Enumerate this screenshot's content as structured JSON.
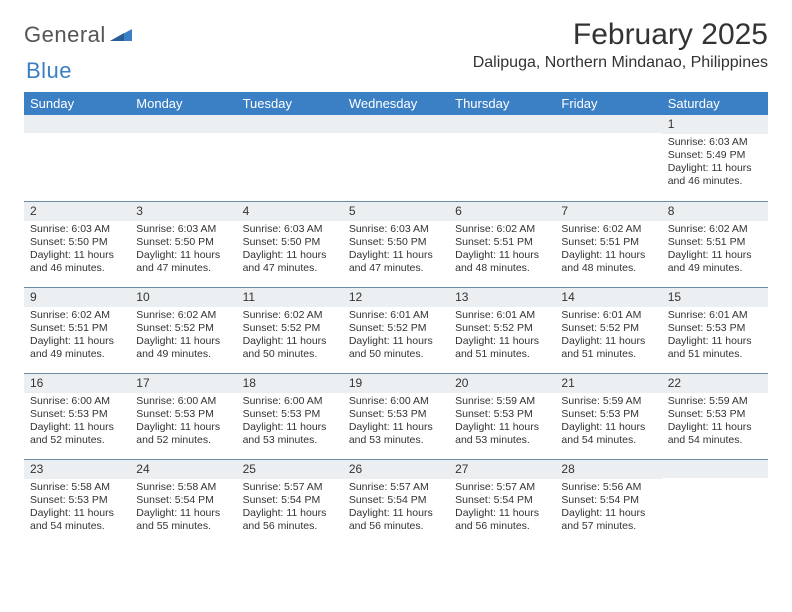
{
  "brand": {
    "part1": "General",
    "part2": "Blue"
  },
  "title": "February 2025",
  "location": "Dalipuga, Northern Mindanao, Philippines",
  "colors": {
    "header_bg": "#3b7fc4",
    "header_text": "#ffffff",
    "daynum_bg": "#eceff1",
    "divider": "#6a8aa8",
    "text": "#333333",
    "brand_gray": "#555555",
    "brand_blue": "#3b7fc4"
  },
  "weekdays": [
    "Sunday",
    "Monday",
    "Tuesday",
    "Wednesday",
    "Thursday",
    "Friday",
    "Saturday"
  ],
  "weeks": [
    [
      {
        "n": "",
        "sr": "",
        "ss": "",
        "dl": ""
      },
      {
        "n": "",
        "sr": "",
        "ss": "",
        "dl": ""
      },
      {
        "n": "",
        "sr": "",
        "ss": "",
        "dl": ""
      },
      {
        "n": "",
        "sr": "",
        "ss": "",
        "dl": ""
      },
      {
        "n": "",
        "sr": "",
        "ss": "",
        "dl": ""
      },
      {
        "n": "",
        "sr": "",
        "ss": "",
        "dl": ""
      },
      {
        "n": "1",
        "sr": "Sunrise: 6:03 AM",
        "ss": "Sunset: 5:49 PM",
        "dl": "Daylight: 11 hours and 46 minutes."
      }
    ],
    [
      {
        "n": "2",
        "sr": "Sunrise: 6:03 AM",
        "ss": "Sunset: 5:50 PM",
        "dl": "Daylight: 11 hours and 46 minutes."
      },
      {
        "n": "3",
        "sr": "Sunrise: 6:03 AM",
        "ss": "Sunset: 5:50 PM",
        "dl": "Daylight: 11 hours and 47 minutes."
      },
      {
        "n": "4",
        "sr": "Sunrise: 6:03 AM",
        "ss": "Sunset: 5:50 PM",
        "dl": "Daylight: 11 hours and 47 minutes."
      },
      {
        "n": "5",
        "sr": "Sunrise: 6:03 AM",
        "ss": "Sunset: 5:50 PM",
        "dl": "Daylight: 11 hours and 47 minutes."
      },
      {
        "n": "6",
        "sr": "Sunrise: 6:02 AM",
        "ss": "Sunset: 5:51 PM",
        "dl": "Daylight: 11 hours and 48 minutes."
      },
      {
        "n": "7",
        "sr": "Sunrise: 6:02 AM",
        "ss": "Sunset: 5:51 PM",
        "dl": "Daylight: 11 hours and 48 minutes."
      },
      {
        "n": "8",
        "sr": "Sunrise: 6:02 AM",
        "ss": "Sunset: 5:51 PM",
        "dl": "Daylight: 11 hours and 49 minutes."
      }
    ],
    [
      {
        "n": "9",
        "sr": "Sunrise: 6:02 AM",
        "ss": "Sunset: 5:51 PM",
        "dl": "Daylight: 11 hours and 49 minutes."
      },
      {
        "n": "10",
        "sr": "Sunrise: 6:02 AM",
        "ss": "Sunset: 5:52 PM",
        "dl": "Daylight: 11 hours and 49 minutes."
      },
      {
        "n": "11",
        "sr": "Sunrise: 6:02 AM",
        "ss": "Sunset: 5:52 PM",
        "dl": "Daylight: 11 hours and 50 minutes."
      },
      {
        "n": "12",
        "sr": "Sunrise: 6:01 AM",
        "ss": "Sunset: 5:52 PM",
        "dl": "Daylight: 11 hours and 50 minutes."
      },
      {
        "n": "13",
        "sr": "Sunrise: 6:01 AM",
        "ss": "Sunset: 5:52 PM",
        "dl": "Daylight: 11 hours and 51 minutes."
      },
      {
        "n": "14",
        "sr": "Sunrise: 6:01 AM",
        "ss": "Sunset: 5:52 PM",
        "dl": "Daylight: 11 hours and 51 minutes."
      },
      {
        "n": "15",
        "sr": "Sunrise: 6:01 AM",
        "ss": "Sunset: 5:53 PM",
        "dl": "Daylight: 11 hours and 51 minutes."
      }
    ],
    [
      {
        "n": "16",
        "sr": "Sunrise: 6:00 AM",
        "ss": "Sunset: 5:53 PM",
        "dl": "Daylight: 11 hours and 52 minutes."
      },
      {
        "n": "17",
        "sr": "Sunrise: 6:00 AM",
        "ss": "Sunset: 5:53 PM",
        "dl": "Daylight: 11 hours and 52 minutes."
      },
      {
        "n": "18",
        "sr": "Sunrise: 6:00 AM",
        "ss": "Sunset: 5:53 PM",
        "dl": "Daylight: 11 hours and 53 minutes."
      },
      {
        "n": "19",
        "sr": "Sunrise: 6:00 AM",
        "ss": "Sunset: 5:53 PM",
        "dl": "Daylight: 11 hours and 53 minutes."
      },
      {
        "n": "20",
        "sr": "Sunrise: 5:59 AM",
        "ss": "Sunset: 5:53 PM",
        "dl": "Daylight: 11 hours and 53 minutes."
      },
      {
        "n": "21",
        "sr": "Sunrise: 5:59 AM",
        "ss": "Sunset: 5:53 PM",
        "dl": "Daylight: 11 hours and 54 minutes."
      },
      {
        "n": "22",
        "sr": "Sunrise: 5:59 AM",
        "ss": "Sunset: 5:53 PM",
        "dl": "Daylight: 11 hours and 54 minutes."
      }
    ],
    [
      {
        "n": "23",
        "sr": "Sunrise: 5:58 AM",
        "ss": "Sunset: 5:53 PM",
        "dl": "Daylight: 11 hours and 54 minutes."
      },
      {
        "n": "24",
        "sr": "Sunrise: 5:58 AM",
        "ss": "Sunset: 5:54 PM",
        "dl": "Daylight: 11 hours and 55 minutes."
      },
      {
        "n": "25",
        "sr": "Sunrise: 5:57 AM",
        "ss": "Sunset: 5:54 PM",
        "dl": "Daylight: 11 hours and 56 minutes."
      },
      {
        "n": "26",
        "sr": "Sunrise: 5:57 AM",
        "ss": "Sunset: 5:54 PM",
        "dl": "Daylight: 11 hours and 56 minutes."
      },
      {
        "n": "27",
        "sr": "Sunrise: 5:57 AM",
        "ss": "Sunset: 5:54 PM",
        "dl": "Daylight: 11 hours and 56 minutes."
      },
      {
        "n": "28",
        "sr": "Sunrise: 5:56 AM",
        "ss": "Sunset: 5:54 PM",
        "dl": "Daylight: 11 hours and 57 minutes."
      },
      {
        "n": "",
        "sr": "",
        "ss": "",
        "dl": ""
      }
    ]
  ]
}
